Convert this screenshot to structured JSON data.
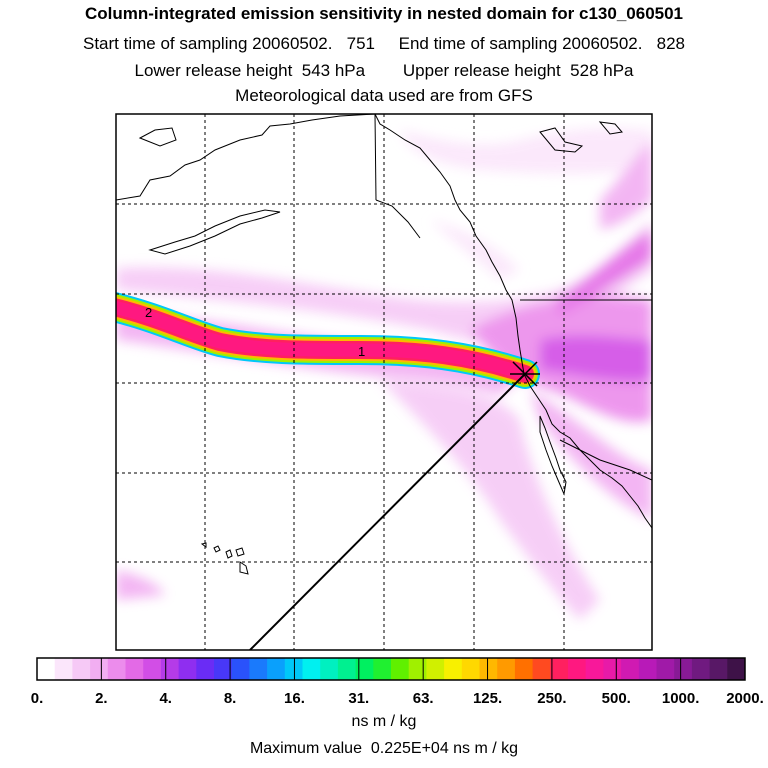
{
  "header": {
    "title": "Column-integrated emission sensitivity in nested domain for c130_060501",
    "sampling": "Start time of sampling 20060502.   751     End time of sampling 20060502.   828",
    "release": "Lower release height  543 hPa        Upper release height  528 hPa",
    "meteo": "Meteorological data used are from GFS"
  },
  "chart_data": {
    "type": "heatmap",
    "title": "Column-integrated emission sensitivity in nested domain for c130_060501",
    "colorbar": {
      "tick_labels": [
        "0.",
        "2.",
        "4.",
        "8.",
        "16.",
        "31.",
        "63.",
        "125.",
        "250.",
        "500.",
        "1000.",
        "2000."
      ],
      "units": "ns m / kg",
      "colors": [
        "#ffffff",
        "#fbe6fb",
        "#f6c9f6",
        "#f2aef2",
        "#ec8cec",
        "#e36ae6",
        "#d24ee6",
        "#b53be8",
        "#8f2ef0",
        "#6a2cf5",
        "#4838f8",
        "#2a52fb",
        "#1a7afc",
        "#0aa0fc",
        "#00c8f8",
        "#00f0f0",
        "#00f0c0",
        "#00f090",
        "#00f060",
        "#20f030",
        "#60f000",
        "#a0f000",
        "#d0f000",
        "#f8f000",
        "#ffd800",
        "#ffb800",
        "#ff9a00",
        "#ff7000",
        "#ff4a20",
        "#ff2060",
        "#ff1880",
        "#f8189a",
        "#e81aa8",
        "#d01ab2",
        "#b81ab8",
        "#a01aa8",
        "#881a96",
        "#701a80",
        "#581866",
        "#3e1248"
      ]
    },
    "plume_labels": [
      "1",
      "2"
    ],
    "max_value_text": "Maximum value  0.225E+04 ns m / kg",
    "max_value": 2250,
    "grid": true
  }
}
